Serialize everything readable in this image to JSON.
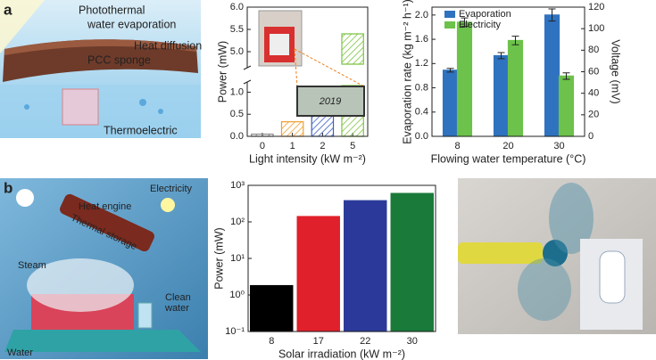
{
  "panel_labels": [
    "a",
    "b"
  ],
  "illustration_a": {
    "title_lines": [
      "Photothermal",
      "water evaporation"
    ],
    "heat": "Heat diffusion",
    "sponge": "PCC sponge",
    "device": "Thermoelectric"
  },
  "illustration_b": {
    "engine": "Heat engine",
    "electricity": "Electricity",
    "storage": "Thermal storage",
    "steam": "Steam",
    "clean_water": [
      "Clean",
      "water"
    ],
    "water": "Water"
  },
  "chart_data": [
    {
      "type": "bar",
      "categories": [
        "0",
        "1",
        "2",
        "5"
      ],
      "values": [
        0.05,
        0.33,
        0.88,
        5.4
      ],
      "colors": [
        "#8a8a8a",
        "#f0a030",
        "#3a5fbf",
        "#7cc242"
      ],
      "hatch": true,
      "ylim": [
        0,
        6.0
      ],
      "y_break": [
        1.15,
        4.72
      ],
      "yticks": [
        {
          "value": 0,
          "label": "0.0"
        },
        0.5,
        {
          "value": 1,
          "label": "1.0"
        },
        {
          "value": 5,
          "label": "5.0"
        },
        5.5,
        {
          "value": 6,
          "label": "6.0"
        }
      ],
      "ylabel": "Power (mW)",
      "xlabel": "Light intensity (kW m⁻²)",
      "inset_text": "2019"
    },
    {
      "type": "bar",
      "categories": [
        "8",
        "20",
        "30"
      ],
      "series": [
        {
          "name": "Evaporation",
          "color": "#2f72c0",
          "values": [
            1.09,
            1.33,
            2.0
          ],
          "errors": [
            0.03,
            0.05,
            0.1
          ]
        },
        {
          "name": "Electricity",
          "color": "#6cc24a",
          "axis": "y2",
          "values": [
            106,
            89,
            56
          ],
          "errors": [
            4,
            4,
            3
          ]
        }
      ],
      "ylim": [
        0,
        2.13
      ],
      "yticks": [
        {
          "value": 0,
          "label": "0.0"
        },
        0.4,
        0.8,
        1.2,
        1.6,
        {
          "value": 2,
          "label": "2.0"
        }
      ],
      "y2lim": [
        0,
        120
      ],
      "y2ticks": [
        0,
        20,
        40,
        60,
        80,
        100,
        120
      ],
      "ylabel": "Evaporation rate (kg m⁻² h⁻¹)",
      "y2label": "Voltage (mV)",
      "xlabel": "Flowing water temperature (°C)",
      "legend": "upper-left"
    },
    {
      "type": "bar",
      "categories": [
        "8",
        "17",
        "22",
        "30"
      ],
      "values": [
        1.8,
        140,
        380,
        600
      ],
      "colors": [
        "#000000",
        "#e0202a",
        "#2b3a9a",
        "#1a7a3a"
      ],
      "log_scale": true,
      "ylim": [
        0.1,
        1000
      ],
      "yticks": [
        {
          "value": 0.1,
          "label": "10⁻¹"
        },
        {
          "value": 1,
          "label": "10⁰"
        },
        {
          "value": 10,
          "label": "10¹"
        },
        {
          "value": 100,
          "label": "10²"
        },
        {
          "value": 1000,
          "label": "10³"
        }
      ],
      "ylabel": "Power (mW)",
      "xlabel": "Solar irradiation (kW m⁻²)"
    }
  ]
}
